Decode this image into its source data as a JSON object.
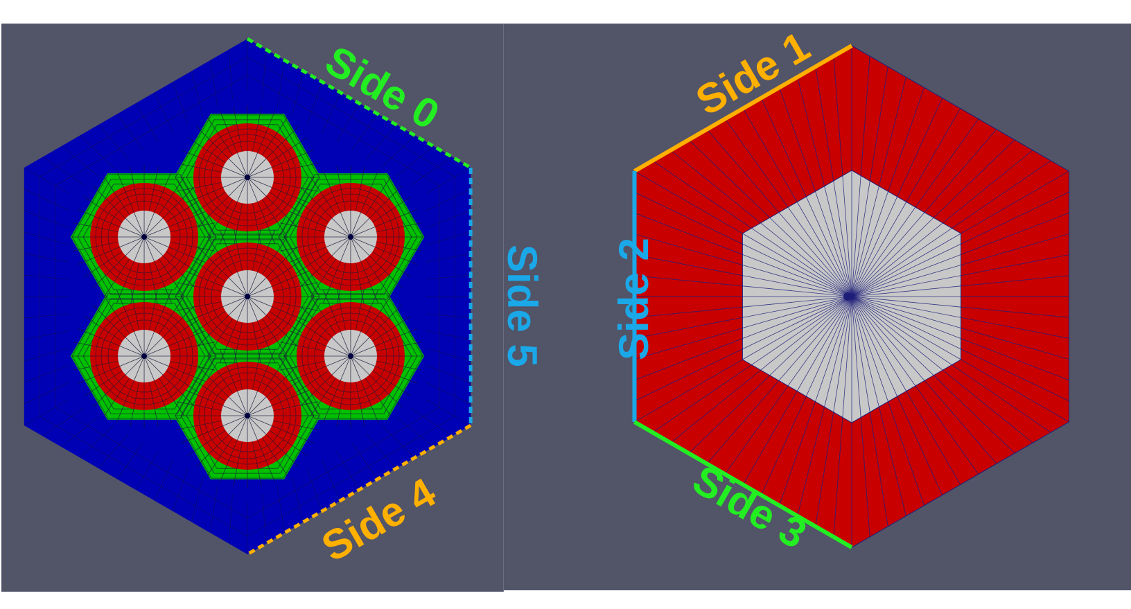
{
  "left_figure": {
    "labels": {
      "side0": "Side 0",
      "side4": "Side 4",
      "side5": "Side 5"
    },
    "colors": {
      "background": "#525467",
      "duct": "#0000b4",
      "coolant": "#00c000",
      "clad": "#c80000",
      "fuel": "#c8c8c8",
      "mesh": "#1a1a3a",
      "side0": "#22ee22",
      "side4": "#ffb000",
      "side5": "#1aa8e8"
    },
    "pin_count": 7
  },
  "right_figure": {
    "labels": {
      "side1": "Side 1",
      "side2": "Side 2",
      "side3": "Side 3"
    },
    "colors": {
      "outer": "#c80000",
      "inner": "#c8c8c8",
      "mesh": "#1e1e7a",
      "side1": "#ffb000",
      "side2": "#1aa8e8",
      "side3": "#22ee22"
    },
    "outer_radial_lines": 72,
    "inner_radial_lines": 72
  }
}
